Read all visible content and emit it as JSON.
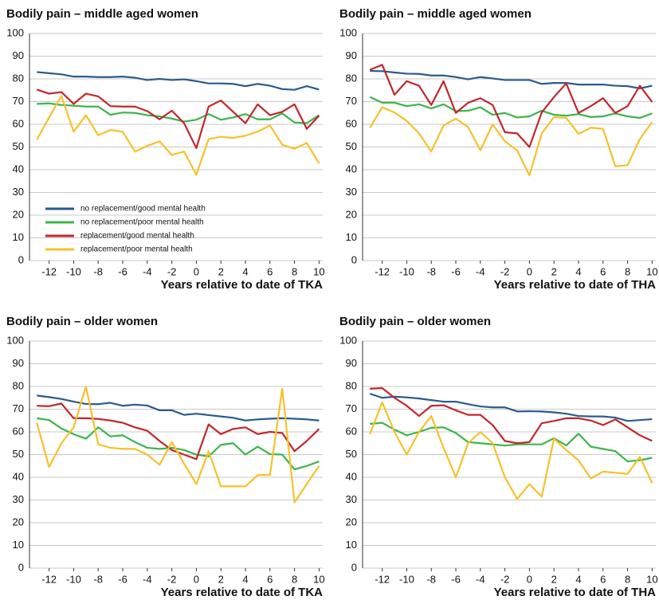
{
  "chart_data": [
    {
      "type": "line",
      "title": "Bodily pain – middle aged women",
      "xlabel": "Years relative to date of TKA",
      "x": [
        -13,
        -12,
        -11,
        -10,
        -9,
        -8,
        -7,
        -6,
        -5,
        -4,
        -3,
        -2,
        -1,
        0,
        1,
        2,
        3,
        4,
        5,
        6,
        7,
        8,
        9,
        10
      ],
      "xlim": [
        -13.6,
        10.3
      ],
      "xticks": [
        -12,
        -10,
        -8,
        -6,
        -4,
        -2,
        0,
        2,
        4,
        6,
        8,
        10
      ],
      "ylim": [
        0,
        100
      ],
      "yticks": [
        0,
        10,
        20,
        30,
        40,
        50,
        60,
        70,
        80,
        90,
        100
      ],
      "grid": true,
      "legend": "lower left",
      "series": [
        {
          "name": "no replacement/good mental health",
          "color": "#2a5b8c",
          "values": [
            83,
            82.5,
            82,
            81,
            81,
            80.8,
            80.8,
            81,
            80.5,
            79.5,
            80,
            79.5,
            79.8,
            79,
            78,
            78,
            77.8,
            76.8,
            77.8,
            77,
            75.5,
            75.2,
            76.8,
            75.3
          ]
        },
        {
          "name": "no replacement/poor mental health",
          "color": "#3cb54a",
          "values": [
            69,
            69.2,
            68.5,
            68.2,
            67.8,
            67.8,
            64.2,
            65.2,
            65,
            64,
            63.5,
            62.5,
            61.2,
            62,
            64.5,
            62,
            63,
            64.5,
            62.2,
            62.2,
            64.8,
            60.8,
            60.5,
            64
          ]
        },
        {
          "name": "replacement/good mental health",
          "color": "#c1272d",
          "values": [
            75.3,
            73.5,
            74.2,
            69,
            73.5,
            72.3,
            68,
            67.8,
            67.8,
            65.8,
            62.2,
            66,
            60.5,
            49.5,
            67.8,
            70.5,
            65.5,
            60.5,
            68.8,
            64,
            65.5,
            68.8,
            58,
            63.8
          ]
        },
        {
          "name": "replacement/poor mental health",
          "color": "#f6c12a",
          "values": [
            53.2,
            63,
            72.5,
            56.7,
            64,
            55.2,
            57.5,
            56.7,
            48,
            50.5,
            52.5,
            46.5,
            48,
            37.8,
            53.5,
            54.5,
            54,
            55,
            56.8,
            59.5,
            51,
            49.2,
            51.8,
            42.8
          ]
        }
      ]
    },
    {
      "type": "line",
      "title": "Bodily pain – middle aged women",
      "xlabel": "Years relative to date of THA",
      "x": [
        -13,
        -12,
        -11,
        -10,
        -9,
        -8,
        -7,
        -6,
        -5,
        -4,
        -3,
        -2,
        -1,
        0,
        1,
        2,
        3,
        4,
        5,
        6,
        7,
        8,
        9,
        10
      ],
      "xlim": [
        -13.6,
        10.3
      ],
      "xticks": [
        -12,
        -10,
        -8,
        -6,
        -4,
        -2,
        0,
        2,
        4,
        6,
        8,
        10
      ],
      "ylim": [
        0,
        100
      ],
      "yticks": [
        0,
        10,
        20,
        30,
        40,
        50,
        60,
        70,
        80,
        90,
        100
      ],
      "grid": true,
      "series": [
        {
          "color": "#2a5b8c",
          "values": [
            83.5,
            83.4,
            82.8,
            82.3,
            82.2,
            81.5,
            81.5,
            80.8,
            79.8,
            80.8,
            80.2,
            79.5,
            79.5,
            79.5,
            77.8,
            78.2,
            78.2,
            77.5,
            77.5,
            77.5,
            77,
            76.8,
            75.8,
            77
          ]
        },
        {
          "color": "#3cb54a",
          "values": [
            72,
            69.5,
            69.5,
            68,
            68.8,
            67,
            68.8,
            65.8,
            66,
            67.5,
            64.2,
            65,
            63,
            63.5,
            66,
            64.2,
            63.8,
            64.5,
            63.2,
            63.5,
            64.8,
            63.5,
            62.8,
            64.8
          ]
        },
        {
          "color": "#c1272d",
          "values": [
            84,
            86.2,
            73,
            79,
            77,
            68.5,
            79,
            65,
            69.5,
            71.5,
            68.5,
            56.5,
            56,
            50,
            65.2,
            72,
            78,
            65,
            68,
            71.5,
            65,
            68,
            77,
            69.8
          ]
        },
        {
          "color": "#f6c12a",
          "values": [
            58.5,
            67.5,
            65.2,
            61.5,
            56,
            48,
            59.5,
            62.5,
            58.8,
            48.5,
            60,
            52.5,
            48.5,
            37.5,
            56,
            63.2,
            62.8,
            55.8,
            58.5,
            58,
            41.5,
            42,
            53.5,
            61
          ]
        }
      ]
    },
    {
      "type": "line",
      "title": "Bodily pain – older women",
      "xlabel": "Years relative to date of TKA",
      "x": [
        -13,
        -12,
        -11,
        -10,
        -9,
        -8,
        -7,
        -6,
        -5,
        -4,
        -3,
        -2,
        -1,
        0,
        1,
        2,
        3,
        4,
        5,
        6,
        7,
        8,
        9,
        10
      ],
      "xlim": [
        -13.6,
        10.3
      ],
      "xticks": [
        -12,
        -10,
        -8,
        -6,
        -4,
        -2,
        0,
        2,
        4,
        6,
        8,
        10
      ],
      "ylim": [
        0,
        100
      ],
      "yticks": [
        0,
        10,
        20,
        30,
        40,
        50,
        60,
        70,
        80,
        90,
        100
      ],
      "grid": true,
      "series": [
        {
          "color": "#2a5b8c",
          "values": [
            76,
            75.3,
            74.5,
            73.3,
            72.3,
            72.2,
            72.8,
            71.5,
            72,
            71.6,
            69.5,
            69.5,
            67.5,
            68,
            67.4,
            66.8,
            66.2,
            65,
            65.5,
            65.8,
            66,
            65.8,
            65.5,
            65
          ]
        },
        {
          "color": "#3cb54a",
          "values": [
            66,
            65.2,
            61.5,
            59,
            57,
            62,
            58,
            58.5,
            55.5,
            53,
            52.5,
            53,
            52,
            50,
            49.2,
            54.3,
            55,
            50,
            53.5,
            50.2,
            50,
            43.5,
            45,
            47
          ]
        },
        {
          "color": "#c1272d",
          "values": [
            71.5,
            71.3,
            72.5,
            66,
            66,
            65.7,
            65,
            64,
            62,
            60.5,
            56,
            52,
            50,
            48,
            63.3,
            59,
            61.3,
            62,
            59,
            60,
            59.5,
            51.5,
            56,
            61.3
          ]
        },
        {
          "color": "#f6c12a",
          "values": [
            64,
            44.5,
            55,
            62,
            80,
            54.5,
            53,
            52.5,
            52.5,
            50,
            45.5,
            55.5,
            46,
            37,
            51.5,
            36,
            36,
            36,
            41,
            41,
            79,
            29,
            37,
            45
          ]
        }
      ]
    },
    {
      "type": "line",
      "title": "Bodily pain – older women",
      "xlabel": "Years relative to date of THA",
      "x": [
        -13,
        -12,
        -11,
        -10,
        -9,
        -8,
        -7,
        -6,
        -5,
        -4,
        -3,
        -2,
        -1,
        0,
        1,
        2,
        3,
        4,
        5,
        6,
        7,
        8,
        9,
        10
      ],
      "xlim": [
        -13.6,
        10.3
      ],
      "xticks": [
        -12,
        -10,
        -8,
        -6,
        -4,
        -2,
        0,
        2,
        4,
        6,
        8,
        10
      ],
      "ylim": [
        0,
        100
      ],
      "yticks": [
        0,
        10,
        20,
        30,
        40,
        50,
        60,
        70,
        80,
        90,
        100
      ],
      "grid": true,
      "series": [
        {
          "color": "#2a5b8c",
          "values": [
            76.8,
            75,
            75.5,
            75.2,
            74.7,
            74,
            73.3,
            73.3,
            72.2,
            71.2,
            70.8,
            70.8,
            69,
            69.1,
            69,
            68.6,
            68,
            67,
            66.8,
            66.8,
            66.3,
            64.8,
            65.2,
            65.6
          ]
        },
        {
          "color": "#3cb54a",
          "values": [
            63.5,
            64,
            61,
            58.5,
            60,
            61.8,
            62,
            59.5,
            55.5,
            55,
            54.5,
            54,
            54.5,
            54.5,
            54.5,
            57.2,
            54,
            59.2,
            53.5,
            52.5,
            51.5,
            47,
            47.5,
            48.6
          ]
        },
        {
          "color": "#c1272d",
          "values": [
            79,
            79.3,
            75,
            71.5,
            67,
            71.5,
            71.7,
            69.5,
            67.5,
            67.5,
            63,
            56,
            55,
            55.5,
            63.8,
            64.8,
            66,
            66,
            65,
            63,
            65.5,
            62,
            58.5,
            56
          ]
        },
        {
          "color": "#f6c12a",
          "values": [
            59,
            73,
            60,
            50,
            60,
            67,
            53,
            40,
            55,
            60,
            55,
            40,
            30.5,
            37,
            31.5,
            57,
            52,
            47.5,
            39.5,
            42.5,
            42,
            41.5,
            49,
            37.5
          ]
        }
      ]
    }
  ]
}
